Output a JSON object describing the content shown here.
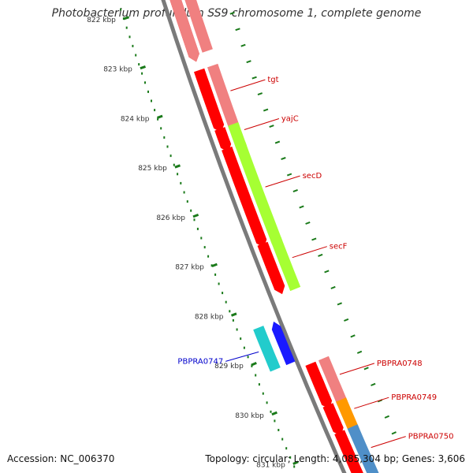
{
  "title": "Photobacterium profundum SS9 chromosome 1, complete genome",
  "footer": {
    "accession": "Accession: NC_006370",
    "topology": "Topology: circular; Length: 4,085,304 bp; Genes: 3,606"
  },
  "ticks": [
    {
      "label": "822 kbp",
      "kbp": 822
    },
    {
      "label": "823 kbp",
      "kbp": 823
    },
    {
      "label": "824 kbp",
      "kbp": 824
    },
    {
      "label": "825 kbp",
      "kbp": 825
    },
    {
      "label": "826 kbp",
      "kbp": 826
    },
    {
      "label": "827 kbp",
      "kbp": 827
    },
    {
      "label": "828 kbp",
      "kbp": 828
    },
    {
      "label": "829 kbp",
      "kbp": 829
    },
    {
      "label": "830 kbp",
      "kbp": 830
    },
    {
      "label": "831 kbp",
      "kbp": 831
    }
  ],
  "genes": [
    {
      "label": "",
      "start_kbp": 821.6,
      "end_kbp": 823.1,
      "strand": "forward",
      "color": "#ff0000"
    },
    {
      "label": "",
      "start_kbp": 821.6,
      "end_kbp": 823.1,
      "strand": "forward",
      "color": "#f08080"
    },
    {
      "label": "tgt",
      "start_kbp": 823.4,
      "end_kbp": 824.55,
      "strand": "forward",
      "color": "#ff0000",
      "color2": "#f08080",
      "label_color": "#cc0000"
    },
    {
      "label": "yajC",
      "start_kbp": 824.6,
      "end_kbp": 824.95,
      "strand": "forward",
      "color": "#ff0000",
      "color2": "#a6ff33",
      "label_color": "#cc0000"
    },
    {
      "label": "secD",
      "start_kbp": 825.0,
      "end_kbp": 826.9,
      "strand": "forward",
      "color": "#ff0000",
      "color2": "#a6ff33",
      "label_color": "#cc0000"
    },
    {
      "label": "secF",
      "start_kbp": 826.95,
      "end_kbp": 827.85,
      "strand": "forward",
      "color": "#ff0000",
      "color2": "#a6ff33",
      "label_color": "#cc0000"
    },
    {
      "label": "PBPRA0747",
      "start_kbp": 828.4,
      "end_kbp": 829.25,
      "strand": "reverse",
      "color": "#1a1aff",
      "color2": "#22cccc",
      "label_color": "#0000cc"
    },
    {
      "label": "PBPRA0748",
      "start_kbp": 829.4,
      "end_kbp": 830.2,
      "strand": "forward",
      "color": "#ff0000",
      "color2": "#f08080",
      "label_color": "#cc0000"
    },
    {
      "label": "PBPRA0749",
      "start_kbp": 830.25,
      "end_kbp": 830.75,
      "strand": "forward",
      "color": "#ff0000",
      "color2": "#ff9900",
      "label_color": "#cc0000"
    },
    {
      "label": "PBPRA0750",
      "start_kbp": 830.8,
      "end_kbp": 831.8,
      "strand": "forward",
      "color": "#ff0000",
      "color2": "#4f8fc8",
      "label_color": "#cc0000"
    }
  ],
  "colors": {
    "backbone": "#7a7a7a",
    "tick": "#1a7a1a",
    "forward_gene": "#ff0000",
    "reverse_gene": "#1a1aff"
  }
}
